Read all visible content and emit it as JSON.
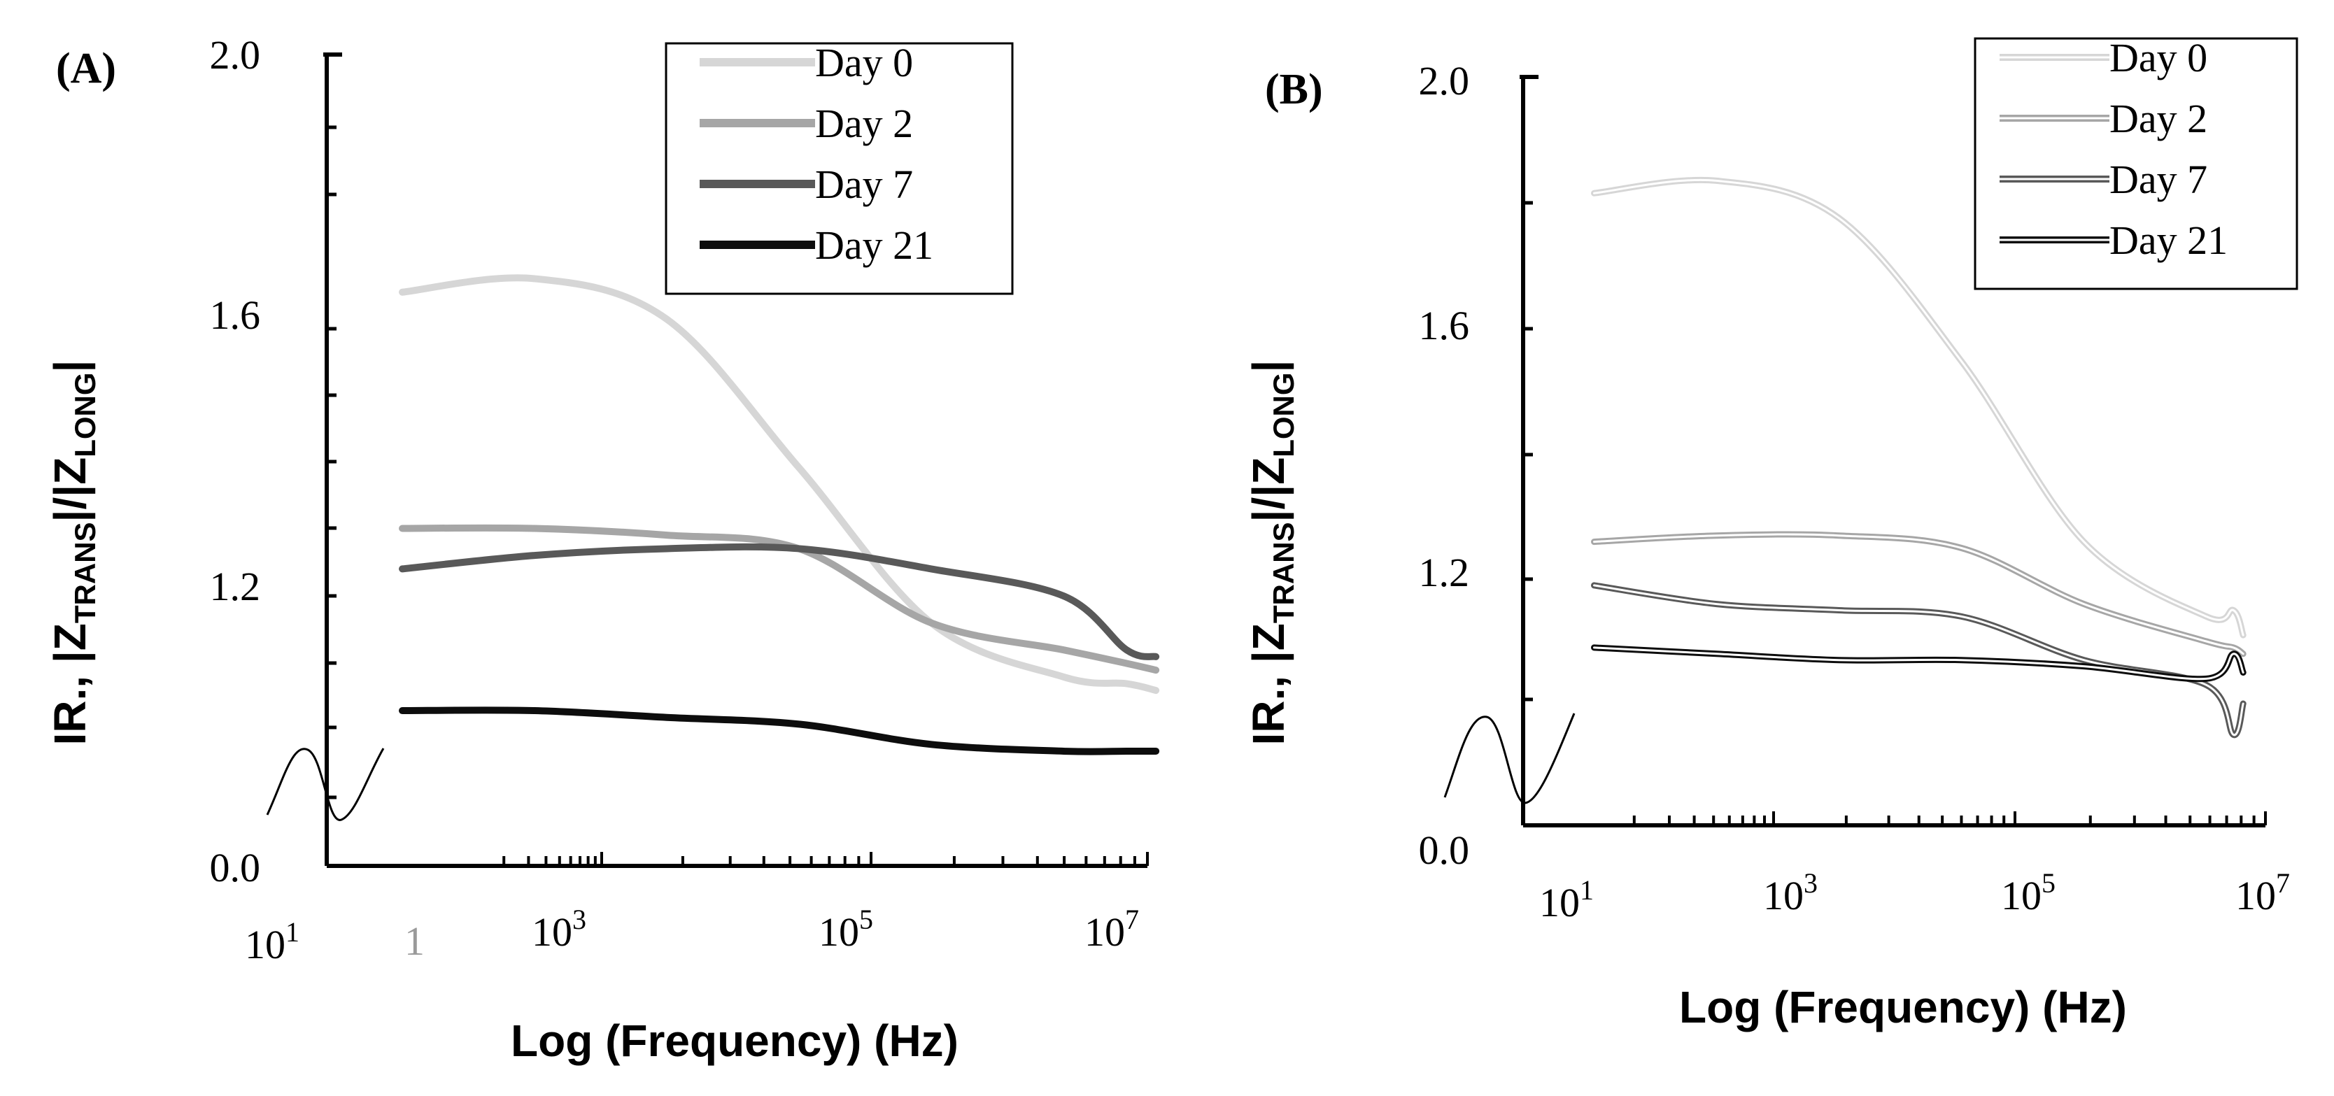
{
  "panels": [
    {
      "panel_label": "(A)",
      "ylabel": "IR., |ZTRANS|/|ZLONG|",
      "ylabel_parts": [
        "IR., |Z",
        "TRANS",
        "|/|Z",
        "LONG",
        "|"
      ],
      "xlabel": "Log (Frequency) (Hz)",
      "yticks": [
        "0.0",
        "1.2",
        "1.6",
        "2.0"
      ],
      "xticks": [
        {
          "base": "10",
          "exp": "1"
        },
        {
          "base": "1",
          "exp": ""
        },
        {
          "base": "10",
          "exp": "3"
        },
        {
          "base": "10",
          "exp": "5"
        },
        {
          "base": "10",
          "exp": "7"
        }
      ],
      "legend_style": "solid"
    },
    {
      "panel_label": "(B)",
      "ylabel": "IR., |ZTRANS|/|ZLONG|",
      "ylabel_parts": [
        "IR., |Z",
        "TRANS",
        "|/|Z",
        "LONG",
        "|"
      ],
      "xlabel": "Log (Frequency) (Hz)",
      "yticks": [
        "0.0",
        "1.2",
        "1.6",
        "2.0"
      ],
      "xticks": [
        {
          "base": "10",
          "exp": "1"
        },
        {
          "base": "10",
          "exp": "3"
        },
        {
          "base": "10",
          "exp": "5"
        },
        {
          "base": "10",
          "exp": "7"
        }
      ],
      "legend_style": "double"
    }
  ],
  "colors": {
    "day0": "#d6d6d6",
    "day2": "#a6a6a6",
    "day7": "#595959",
    "day21": "#0d0d0d",
    "axis": "#000000"
  },
  "chart_data": [
    {
      "type": "line",
      "title": "",
      "xlabel": "Log (Frequency) (Hz)",
      "ylabel": "IR., |ZTRANS|/|ZLONG|",
      "x_scale": "log",
      "y_axis_break": true,
      "ylim": [
        0.0,
        2.0
      ],
      "legend_position": "top-right",
      "x": [
        10,
        100,
        1000,
        10000,
        100000,
        1000000,
        3000000,
        5000000
      ],
      "series": [
        {
          "name": "Day 0",
          "values": [
            1.65,
            1.67,
            1.61,
            1.39,
            1.16,
            1.08,
            1.07,
            1.06
          ]
        },
        {
          "name": "Day 2",
          "values": [
            1.3,
            1.3,
            1.29,
            1.27,
            1.16,
            1.12,
            1.1,
            1.09
          ]
        },
        {
          "name": "Day 7",
          "values": [
            1.24,
            1.26,
            1.27,
            1.27,
            1.24,
            1.2,
            1.12,
            1.11
          ]
        },
        {
          "name": "Day 21",
          "values": [
            1.03,
            1.03,
            1.02,
            1.01,
            0.98,
            0.97,
            0.97,
            0.97
          ]
        }
      ]
    },
    {
      "type": "line",
      "title": "",
      "xlabel": "Log (Frequency) (Hz)",
      "ylabel": "IR., |ZTRANS|/|ZLONG|",
      "x_scale": "log",
      "y_axis_break": true,
      "ylim": [
        0.0,
        2.0
      ],
      "legend_position": "top-right",
      "x": [
        30,
        300,
        3000,
        30000,
        300000,
        3000000,
        5000000,
        6000000
      ],
      "series": [
        {
          "name": "Day 0",
          "values": [
            1.82,
            1.84,
            1.78,
            1.55,
            1.26,
            1.14,
            1.15,
            1.11
          ]
        },
        {
          "name": "Day 2",
          "values": [
            1.26,
            1.27,
            1.27,
            1.25,
            1.16,
            1.1,
            1.09,
            1.08
          ]
        },
        {
          "name": "Day 7",
          "values": [
            1.19,
            1.16,
            1.15,
            1.14,
            1.07,
            1.03,
            0.95,
            1.0
          ]
        },
        {
          "name": "Day 21",
          "values": [
            1.09,
            1.08,
            1.07,
            1.07,
            1.06,
            1.04,
            1.08,
            1.05
          ]
        }
      ]
    }
  ]
}
